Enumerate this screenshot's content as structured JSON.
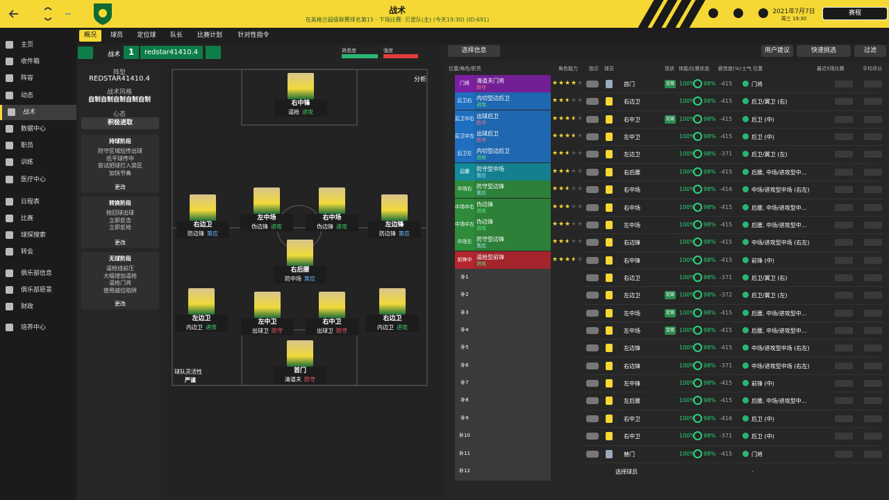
{
  "header": {
    "title": "战术",
    "subtitle": "在英格兰超级联赛排名第15 · 下场比赛: 贝里队(主) (今天19:30) (ID:691)",
    "date": "2021年7月7日",
    "time": "周三 19:30",
    "continue": "赛程"
  },
  "sidebar": [
    "主页",
    "收件箱",
    "阵容",
    "动态",
    "战术",
    "数据中心",
    "职员",
    "训练",
    "医疗中心",
    "日程表",
    "比赛",
    "球探搜索",
    "转会",
    "俱乐部信息",
    "俱乐部愿景",
    "财政",
    "培养中心"
  ],
  "tabs": [
    "概况",
    "球员",
    "定位球",
    "队长",
    "比赛计划",
    "针对性指令"
  ],
  "tactic_bar": {
    "label": "战术",
    "slot": "1",
    "name": "redstar41410.4",
    "familiarity": "熟悉度",
    "intensity": "强度"
  },
  "left_panel": {
    "formation_label": "阵型",
    "formation": "REDSTAR41410.4",
    "style_label": "战术风格",
    "style": "自制自制自制自制自制",
    "mentality_label": "心态",
    "mentality": "积极进取",
    "phases": [
      {
        "title": "持球阶段",
        "items": [
          "防守区域短传出球",
          "低平球传中",
          "尝试把球打入禁区",
          "加快节奏"
        ],
        "more": "更改"
      },
      {
        "title": "转换阶段",
        "items": [
          "抢回球出球",
          "立即反击",
          "立即反抢"
        ],
        "more": "更改"
      },
      {
        "title": "无球阶段",
        "items": [
          "逼抢线前压",
          "大幅增加逼抢",
          "逼抢门将",
          "使用越位陷阱"
        ],
        "more": "更改"
      }
    ]
  },
  "pitch": {
    "analysis": "分析",
    "flexibility_label": "球队灵活性",
    "flexibility": "严谨",
    "players": [
      {
        "position": "右中锋",
        "role": "逼抢",
        "duty": "进攻",
        "duty_color": "#3fd46a"
      },
      {
        "position": "右边卫",
        "role": "防边锋",
        "duty": "策应",
        "duty_color": "#6cb6ff"
      },
      {
        "position": "左中场",
        "role": "伪边锋",
        "duty": "进攻",
        "duty_color": "#3fd46a"
      },
      {
        "position": "右中场",
        "role": "伪边锋",
        "duty": "进攻",
        "duty_color": "#3fd46a"
      },
      {
        "position": "左边锋",
        "role": "防边锋",
        "duty": "策应",
        "duty_color": "#6cb6ff"
      },
      {
        "position": "右后腰",
        "role": "防中场",
        "duty": "策应",
        "duty_color": "#6cb6ff"
      },
      {
        "position": "左边卫",
        "role": "内边卫",
        "duty": "进攻",
        "duty_color": "#3fd46a"
      },
      {
        "position": "左中卫",
        "role": "出球卫",
        "duty": "防守",
        "duty_color": "#ff5c6c"
      },
      {
        "position": "右中卫",
        "role": "出球卫",
        "duty": "防守",
        "duty_color": "#ff5c6c"
      },
      {
        "position": "右边卫",
        "role": "内边卫",
        "duty": "进攻",
        "duty_color": "#3fd46a"
      },
      {
        "position": "首门",
        "role": "清道夫",
        "duty": "防守",
        "duty_color": "#ff5c6c"
      }
    ]
  },
  "toolbar": {
    "select_info": "选择信息",
    "suggest": "用户建议",
    "quick_pick": "快速挑选",
    "filter": "过滤"
  },
  "table": {
    "columns": [
      "位置/角色/职责",
      "角色能力",
      "指示",
      "球员",
      "现状",
      "体能/比赛状态",
      "疲劳度(%)",
      "士气 位置",
      "最近5场比赛",
      "平均评分"
    ],
    "slots": [
      {
        "label": "门将",
        "role": "清道夫门将",
        "duty": "防守",
        "color": "#7b1fa2",
        "duty_color": "#ff7a8a",
        "rating": 4
      },
      {
        "label": "后卫右",
        "role": "内切型边后卫",
        "duty": "进攻",
        "color": "#1f6fc0",
        "duty_color": "#5cf07e",
        "rating": 2.5
      },
      {
        "label": "后卫中右",
        "role": "出球后卫",
        "duty": "防守",
        "color": "#1f6fc0",
        "duty_color": "#ff7a8a",
        "rating": 3.5
      },
      {
        "label": "后卫中左",
        "role": "出球后卫",
        "duty": "防守",
        "color": "#1f6fc0",
        "duty_color": "#ff7a8a",
        "rating": 3.5
      },
      {
        "label": "后卫左",
        "role": "内切型边后卫",
        "duty": "进攻",
        "color": "#1f6fc0",
        "duty_color": "#5cf07e",
        "rating": 2.5
      },
      {
        "label": "后腰",
        "role": "防守型中场",
        "duty": "策应",
        "color": "#138a9a",
        "duty_color": "#9fe3ff",
        "rating": 3
      },
      {
        "label": "中场右",
        "role": "防守型边锋",
        "duty": "策应",
        "color": "#2e8b3a",
        "duty_color": "#9fe3ff",
        "rating": 2.5
      },
      {
        "label": "中场中右",
        "role": "伪边锋",
        "duty": "进攻",
        "color": "#2e8b3a",
        "duty_color": "#5cf07e",
        "rating": 3
      },
      {
        "label": "中场中左",
        "role": "伪边锋",
        "duty": "进攻",
        "color": "#2e8b3a",
        "duty_color": "#5cf07e",
        "rating": 3
      },
      {
        "label": "中场左",
        "role": "防守型边锋",
        "duty": "策应",
        "color": "#2e8b3a",
        "duty_color": "#9fe3ff",
        "rating": 2.5
      },
      {
        "label": "前锋中",
        "role": "逼抢型前锋",
        "duty": "进攻",
        "color": "#b3262e",
        "duty_color": "#5cf07e",
        "rating": 3.5
      },
      {
        "label": "补1"
      },
      {
        "label": "补2"
      },
      {
        "label": "补3"
      },
      {
        "label": "补4"
      },
      {
        "label": "补5"
      },
      {
        "label": "补6"
      },
      {
        "label": "补7"
      },
      {
        "label": "补8"
      },
      {
        "label": "补9"
      },
      {
        "label": "补10"
      },
      {
        "label": "补11"
      },
      {
        "label": "补12"
      }
    ],
    "rows": [
      {
        "pos": "首门",
        "status": "定级",
        "fitness": "100%",
        "match": "98%",
        "fatigue": "-415",
        "positions": "门将"
      },
      {
        "pos": "右边卫",
        "fitness": "100%",
        "match": "98%",
        "fatigue": "-415",
        "positions": "后卫/翼卫 (右)"
      },
      {
        "pos": "右中卫",
        "status": "定级",
        "fitness": "100%",
        "match": "98%",
        "fatigue": "-415",
        "positions": "后卫 (中)"
      },
      {
        "pos": "左中卫",
        "fitness": "100%",
        "match": "98%",
        "fatigue": "-415",
        "positions": "后卫 (中)"
      },
      {
        "pos": "左边卫",
        "fitness": "100%",
        "match": "98%",
        "fatigue": "-371",
        "positions": "后卫/翼卫 (左)"
      },
      {
        "pos": "右后腰",
        "fitness": "100%",
        "match": "98%",
        "fatigue": "-415",
        "positions": "后腰, 中场/进攻型中..."
      },
      {
        "pos": "右中场",
        "fitness": "100%",
        "match": "98%",
        "fatigue": "-416",
        "positions": "中场/进攻型中场 (右左)"
      },
      {
        "pos": "右中场",
        "fitness": "100%",
        "match": "98%",
        "fatigue": "-415",
        "positions": "后腰, 中场/进攻型中..."
      },
      {
        "pos": "左中场",
        "fitness": "100%",
        "match": "98%",
        "fatigue": "-415",
        "positions": "后腰, 中场/进攻型中..."
      },
      {
        "pos": "右边锋",
        "fitness": "100%",
        "match": "98%",
        "fatigue": "-415",
        "positions": "中场/进攻型中场 (右左)"
      },
      {
        "pos": "右中锋",
        "fitness": "100%",
        "match": "98%",
        "fatigue": "-415",
        "positions": "前锋 (中)"
      },
      {
        "pos": "右边卫",
        "fitness": "100%",
        "match": "98%",
        "fatigue": "-371",
        "positions": "后卫/翼卫 (右)"
      },
      {
        "pos": "左边卫",
        "status": "定级",
        "fitness": "100%",
        "match": "98%",
        "fatigue": "-372",
        "positions": "后卫/翼卫 (左)"
      },
      {
        "pos": "左中场",
        "status": "定级",
        "fitness": "100%",
        "match": "98%",
        "fatigue": "-415",
        "positions": "后腰, 中场/进攻型中..."
      },
      {
        "pos": "左中场",
        "status": "定级",
        "fitness": "100%",
        "match": "98%",
        "fatigue": "-415",
        "positions": "后腰, 中场/进攻型中..."
      },
      {
        "pos": "左边锋",
        "fitness": "100%",
        "match": "98%",
        "fatigue": "-415",
        "positions": "中场/进攻型中场 (右左)"
      },
      {
        "pos": "右边锋",
        "fitness": "100%",
        "match": "98%",
        "fatigue": "-371",
        "positions": "中场/进攻型中场 (右左)"
      },
      {
        "pos": "左中锋",
        "fitness": "100%",
        "match": "98%",
        "fatigue": "-415",
        "positions": "前锋 (中)"
      },
      {
        "pos": "左后腰",
        "fitness": "100%",
        "match": "98%",
        "fatigue": "-415",
        "positions": "后腰, 中场/进攻型中..."
      },
      {
        "pos": "右中卫",
        "fitness": "100%",
        "match": "98%",
        "fatigue": "-416",
        "positions": "后卫 (中)"
      },
      {
        "pos": "右中卫",
        "fitness": "100%",
        "match": "98%",
        "fatigue": "-371",
        "positions": "后卫 (中)"
      },
      {
        "pos": "替门",
        "fitness": "100%",
        "match": "98%",
        "fatigue": "-415",
        "positions": "门将"
      },
      {
        "pos": "选择球员",
        "positions": "-"
      }
    ]
  }
}
